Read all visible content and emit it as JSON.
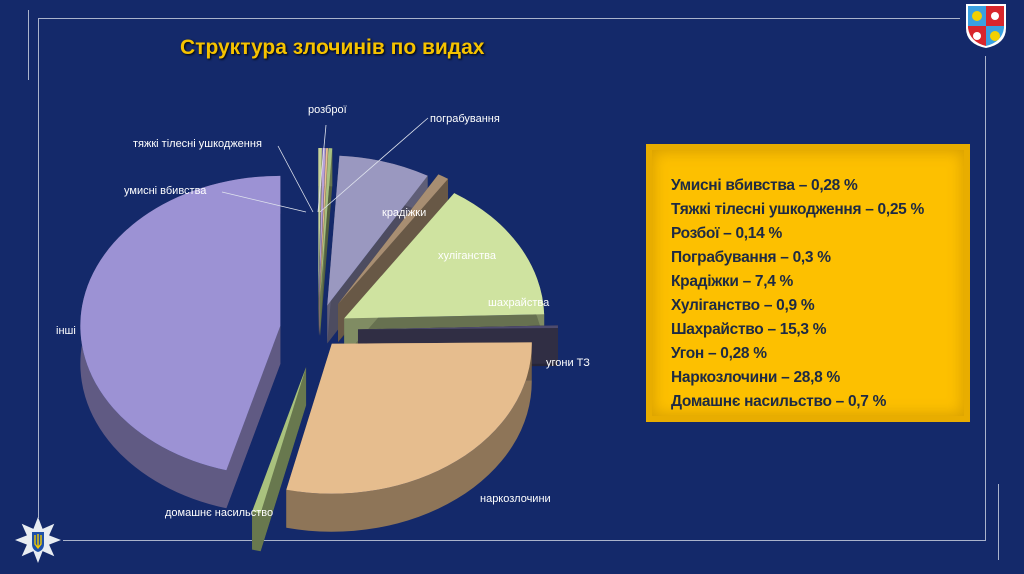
{
  "title": "Структура злочинів по видах",
  "legend_box": [
    "Умисні вбивства – 0,28 %",
    "Тяжкі тілесні ушкодження – 0,25 %",
    "Розбої – 0,14 %",
    "Пограбування – 0,3 %",
    "Крадіжки – 7,4 %",
    "Хуліганство – 0,9 %",
    "Шахрайство – 15,3 %",
    "Угон – 0,28 %",
    "Наркозлочини – 28,8 %",
    "Домашнє насильство – 0,7 %"
  ],
  "chart_data": {
    "type": "pie",
    "style": "3d-exploded",
    "title": "Структура злочинів по видах",
    "unit": "%",
    "categories": [
      "умисні вбивства",
      "тяжкі тілесні ушкодження",
      "розброї",
      "пограбування",
      "крадіжки",
      "хуліганства",
      "шахрайства",
      "угони ТЗ",
      "наркозлочини",
      "домашнє насильство",
      "інші"
    ],
    "values": [
      0.28,
      0.25,
      0.14,
      0.3,
      7.4,
      0.9,
      15.3,
      0.28,
      28.8,
      0.7,
      45.65
    ],
    "colors": [
      "#c8d49a",
      "#b8a0d8",
      "#e8c090",
      "#a8c080",
      "#9a98c0",
      "#a88e72",
      "#cfe3a0",
      "#4e4b6e",
      "#e6bd8e",
      "#a9c27e",
      "#9c92d4"
    ]
  },
  "colors": {
    "background": "#14296a",
    "title": "#f5c200",
    "box": "#fdc000",
    "box_text": "#1d2a44"
  },
  "icons": {
    "top_right": "coat-of-arms-icon",
    "bottom_left": "police-star-icon"
  }
}
